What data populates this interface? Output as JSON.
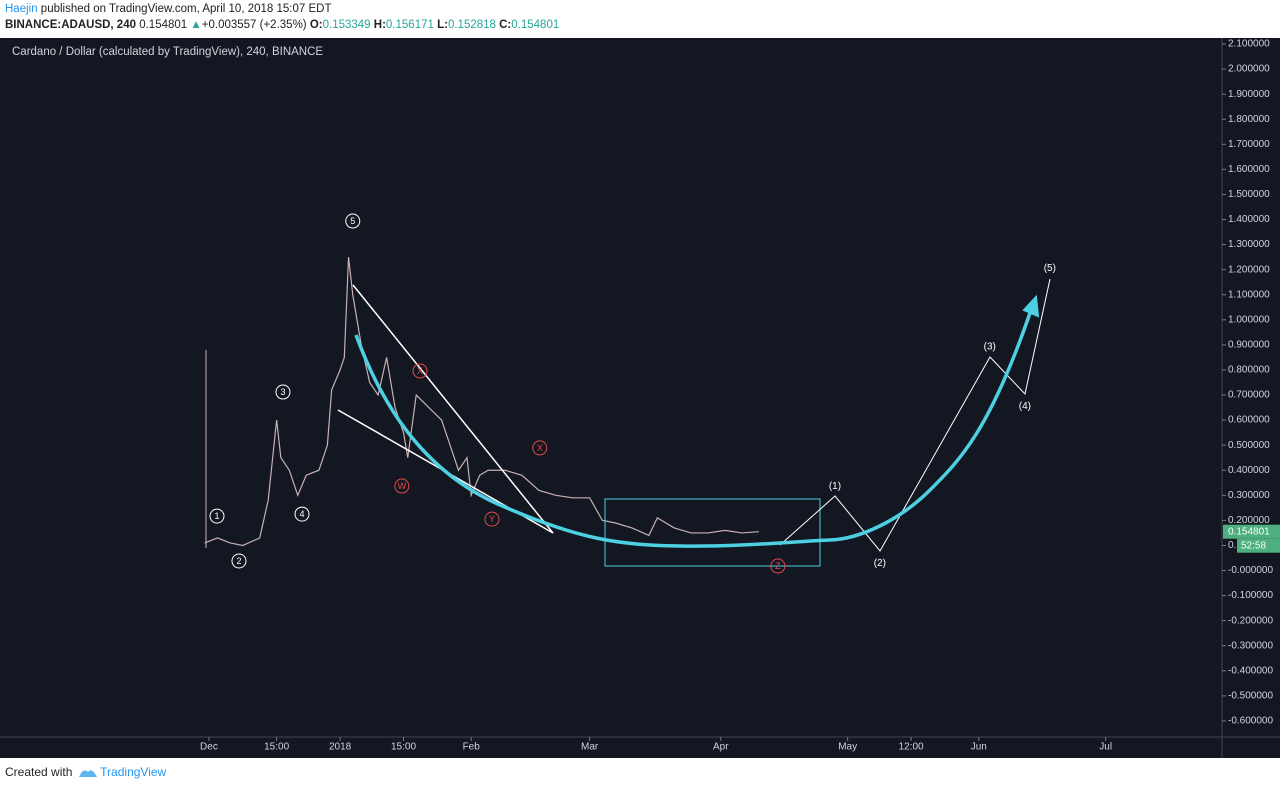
{
  "header": {
    "author": "Haejin",
    "published": " published on TradingView.com, April 10, 2018 15:07 EDT",
    "symbol": "BINANCE:ADAUSD, 240",
    "price": "0.154801",
    "arrow": "▲",
    "change": "+0.003557 (+2.35%)",
    "o_label": "O:",
    "o": "0.153349",
    "h_label": "H:",
    "h": "0.156171",
    "l_label": "L:",
    "l": "0.152818",
    "c_label": "C:",
    "c": "0.154801"
  },
  "footer": {
    "created": "Created with",
    "brand": "TradingView"
  },
  "chart_data": {
    "type": "line",
    "title": "Cardano / Dollar (calculated by TradingView), 240, BINANCE",
    "color": "#c8b0b4",
    "x": [
      -1,
      2,
      5,
      8,
      12,
      14,
      16,
      17,
      19,
      21,
      23,
      26,
      28,
      29,
      31,
      32,
      33,
      34,
      36,
      38,
      40,
      42,
      44,
      46,
      47,
      49,
      52,
      55,
      57,
      59,
      61,
      62,
      64,
      66,
      70,
      74,
      78,
      82,
      86,
      90,
      93,
      96,
      100,
      104,
      106,
      110,
      114,
      118,
      122,
      126,
      130
    ],
    "values": [
      0.11,
      0.13,
      0.11,
      0.1,
      0.13,
      0.28,
      0.6,
      0.45,
      0.4,
      0.3,
      0.38,
      0.4,
      0.5,
      0.72,
      0.8,
      0.85,
      1.25,
      1.1,
      0.9,
      0.75,
      0.7,
      0.85,
      0.65,
      0.55,
      0.45,
      0.7,
      0.65,
      0.6,
      0.5,
      0.4,
      0.45,
      0.3,
      0.38,
      0.4,
      0.4,
      0.38,
      0.32,
      0.3,
      0.29,
      0.29,
      0.2,
      0.19,
      0.17,
      0.14,
      0.21,
      0.17,
      0.15,
      0.15,
      0.16,
      0.15,
      0.155
    ],
    "last_price": {
      "value": 0.154801,
      "label": "0.154801",
      "timer": "52:58",
      "color": "#4caf7d"
    },
    "xlim": [
      -49.4,
      239.5
    ],
    "xticks": [
      {
        "value": 0,
        "label": "Dec"
      },
      {
        "value": 16,
        "label": "15:00"
      },
      {
        "value": 31,
        "label": "2018"
      },
      {
        "value": 46,
        "label": "15:00"
      },
      {
        "value": 62,
        "label": "Feb"
      },
      {
        "value": 90,
        "label": "Mar"
      },
      {
        "value": 121,
        "label": "Apr"
      },
      {
        "value": 151,
        "label": "May"
      },
      {
        "value": 166,
        "label": "12:00"
      },
      {
        "value": 182,
        "label": "Jun"
      },
      {
        "value": 212,
        "label": "Jul"
      }
    ],
    "ylim": [
      -0.664,
      2.124
    ],
    "yticks": [
      {
        "value": 2.1,
        "label": "2.100000"
      },
      {
        "value": 2.0,
        "label": "2.000000"
      },
      {
        "value": 1.9,
        "label": "1.900000"
      },
      {
        "value": 1.8,
        "label": "1.800000"
      },
      {
        "value": 1.7,
        "label": "1.700000"
      },
      {
        "value": 1.6,
        "label": "1.600000"
      },
      {
        "value": 1.5,
        "label": "1.500000"
      },
      {
        "value": 1.4,
        "label": "1.400000"
      },
      {
        "value": 1.3,
        "label": "1.300000"
      },
      {
        "value": 1.2,
        "label": "1.200000"
      },
      {
        "value": 1.1,
        "label": "1.100000"
      },
      {
        "value": 1.0,
        "label": "1.000000"
      },
      {
        "value": 0.9,
        "label": "0.900000"
      },
      {
        "value": 0.8,
        "label": "0.800000"
      },
      {
        "value": 0.7,
        "label": "0.700000"
      },
      {
        "value": 0.6,
        "label": "0.600000"
      },
      {
        "value": 0.5,
        "label": "0.500000"
      },
      {
        "value": 0.4,
        "label": "0.400000"
      },
      {
        "value": 0.3,
        "label": "0.300000"
      },
      {
        "value": 0.2,
        "label": "0.200000"
      },
      {
        "value": 0.1,
        "label": "0.100000"
      },
      {
        "value": 0,
        "label": "-0.000000"
      },
      {
        "value": -0.1,
        "label": "-0.100000"
      },
      {
        "value": -0.2,
        "label": "-0.200000"
      },
      {
        "value": -0.3,
        "label": "-0.300000"
      },
      {
        "value": -0.4,
        "label": "-0.400000"
      },
      {
        "value": -0.5,
        "label": "-0.500000"
      },
      {
        "value": -0.6,
        "label": "-0.600000"
      }
    ],
    "grid": false,
    "annotations": [
      {
        "text": "1",
        "x": 1.9,
        "y": 0.217,
        "style": "circle",
        "color": "#ffffff"
      },
      {
        "text": "2",
        "x": 7.1,
        "y": 0.038,
        "style": "circle",
        "color": "#ffffff"
      },
      {
        "text": "3",
        "x": 17.5,
        "y": 0.712,
        "style": "circle",
        "color": "#ffffff"
      },
      {
        "text": "4",
        "x": 22,
        "y": 0.225,
        "style": "circle",
        "color": "#ffffff"
      },
      {
        "text": "5",
        "x": 34,
        "y": 1.394,
        "style": "circle",
        "color": "#ffffff"
      },
      {
        "text": "W",
        "x": 45.6,
        "y": 0.337,
        "style": "circle",
        "color": "#e04848"
      },
      {
        "text": "X",
        "x": 49.9,
        "y": 0.796,
        "style": "circle",
        "color": "#e04848"
      },
      {
        "text": "Y",
        "x": 66.9,
        "y": 0.205,
        "style": "circle",
        "color": "#e04848"
      },
      {
        "text": "X",
        "x": 78.2,
        "y": 0.489,
        "style": "circle",
        "color": "#e04848"
      },
      {
        "text": "Z",
        "x": 134.5,
        "y": 0.018,
        "style": "circle",
        "color": "#e04848"
      },
      {
        "text": "(1)",
        "x": 148,
        "y": 0.337,
        "style": "plain",
        "color": "#ffffff"
      },
      {
        "text": "(2)",
        "x": 158.6,
        "y": 0.03,
        "style": "plain",
        "color": "#ffffff"
      },
      {
        "text": "(3)",
        "x": 184.6,
        "y": 0.895,
        "style": "plain",
        "color": "#ffffff"
      },
      {
        "text": "(4)",
        "x": 192.9,
        "y": 0.656,
        "style": "plain",
        "color": "#ffffff"
      },
      {
        "text": "(5)",
        "x": 198.8,
        "y": 1.207,
        "style": "plain",
        "color": "#ffffff"
      }
    ]
  }
}
